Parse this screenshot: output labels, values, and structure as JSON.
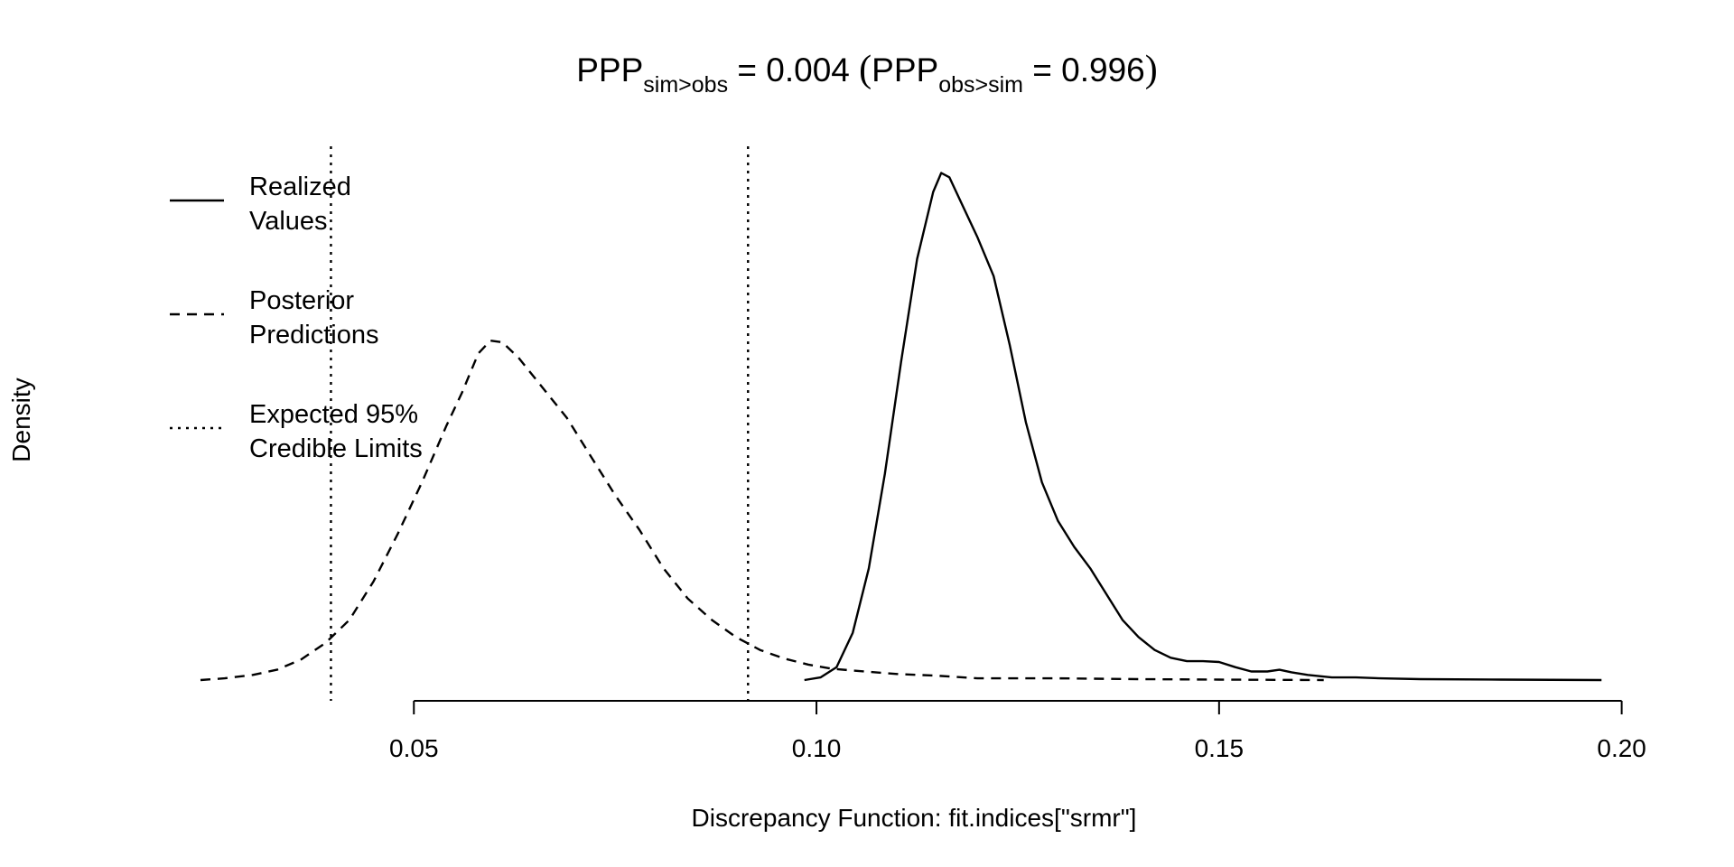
{
  "chart_data": {
    "type": "line",
    "title": {
      "lhs_main": "PPP",
      "lhs_sub": "sim>obs",
      "lhs_value": " = 0.004 ",
      "open_paren": "(",
      "rhs_main": "PPP",
      "rhs_sub": "obs>sim",
      "rhs_value": " = 0.996",
      "close_paren": ")"
    },
    "xlabel": "Discrepancy Function: fit.indices[\"srmr\"]",
    "ylabel": "Density",
    "xlim": [
      0.0235,
      0.2015
    ],
    "ylim": [
      0,
      60
    ],
    "x_axis_ticks": [
      {
        "value": 0.05,
        "label": "0.05"
      },
      {
        "value": 0.1,
        "label": "0.10"
      },
      {
        "value": 0.15,
        "label": "0.15"
      },
      {
        "value": 0.2,
        "label": "0.20"
      }
    ],
    "y_axis_visible": false,
    "grid": false,
    "legend": {
      "position": "top-left",
      "entries": [
        {
          "line1": "Realized",
          "line2": "Values",
          "style": "solid"
        },
        {
          "line1": "Posterior",
          "line2": "Predictions",
          "style": "dashed"
        },
        {
          "line1": "Expected 95%",
          "line2": "Credible Limits",
          "style": "dotted"
        }
      ]
    },
    "series": [
      {
        "name": "Realized Values",
        "style": "solid",
        "points": [
          [
            0.0985,
            0.0
          ],
          [
            0.1005,
            0.3
          ],
          [
            0.1025,
            1.5
          ],
          [
            0.1045,
            5.5
          ],
          [
            0.1065,
            13.0
          ],
          [
            0.1085,
            24.0
          ],
          [
            0.1105,
            37.0
          ],
          [
            0.1125,
            49.0
          ],
          [
            0.1145,
            56.8
          ],
          [
            0.1155,
            59.0
          ],
          [
            0.1165,
            58.5
          ],
          [
            0.118,
            55.5
          ],
          [
            0.12,
            51.5
          ],
          [
            0.122,
            47.0
          ],
          [
            0.124,
            39.0
          ],
          [
            0.126,
            30.0
          ],
          [
            0.128,
            23.0
          ],
          [
            0.13,
            18.5
          ],
          [
            0.132,
            15.5
          ],
          [
            0.134,
            13.0
          ],
          [
            0.136,
            10.0
          ],
          [
            0.138,
            7.0
          ],
          [
            0.14,
            5.0
          ],
          [
            0.142,
            3.5
          ],
          [
            0.144,
            2.6
          ],
          [
            0.146,
            2.2
          ],
          [
            0.148,
            2.2
          ],
          [
            0.15,
            2.1
          ],
          [
            0.152,
            1.5
          ],
          [
            0.154,
            1.0
          ],
          [
            0.156,
            1.0
          ],
          [
            0.1575,
            1.2
          ],
          [
            0.159,
            0.9
          ],
          [
            0.161,
            0.6
          ],
          [
            0.164,
            0.3
          ],
          [
            0.167,
            0.3
          ],
          [
            0.17,
            0.2
          ],
          [
            0.175,
            0.1
          ],
          [
            0.185,
            0.05
          ],
          [
            0.1975,
            0.0
          ]
        ]
      },
      {
        "name": "Posterior Predictions",
        "style": "dashed",
        "points": [
          [
            0.0235,
            0.0
          ],
          [
            0.0265,
            0.2
          ],
          [
            0.03,
            0.6
          ],
          [
            0.033,
            1.2
          ],
          [
            0.036,
            2.4
          ],
          [
            0.039,
            4.3
          ],
          [
            0.042,
            7.0
          ],
          [
            0.045,
            11.5
          ],
          [
            0.048,
            17.0
          ],
          [
            0.051,
            23.0
          ],
          [
            0.054,
            29.5
          ],
          [
            0.056,
            33.5
          ],
          [
            0.058,
            38.0
          ],
          [
            0.0595,
            39.5
          ],
          [
            0.061,
            39.3
          ],
          [
            0.063,
            37.5
          ],
          [
            0.066,
            34.0
          ],
          [
            0.069,
            30.5
          ],
          [
            0.072,
            26.0
          ],
          [
            0.075,
            21.5
          ],
          [
            0.078,
            17.5
          ],
          [
            0.081,
            13.0
          ],
          [
            0.084,
            9.5
          ],
          [
            0.087,
            7.0
          ],
          [
            0.09,
            5.0
          ],
          [
            0.093,
            3.5
          ],
          [
            0.096,
            2.5
          ],
          [
            0.099,
            1.8
          ],
          [
            0.102,
            1.3
          ],
          [
            0.106,
            1.0
          ],
          [
            0.11,
            0.7
          ],
          [
            0.115,
            0.5
          ],
          [
            0.12,
            0.2
          ],
          [
            0.13,
            0.2
          ],
          [
            0.14,
            0.1
          ],
          [
            0.15,
            0.05
          ],
          [
            0.163,
            0.0
          ]
        ]
      }
    ],
    "reference_lines": [
      {
        "name": "Expected 95% Credible Limits (lower)",
        "style": "dotted",
        "x": 0.0397
      },
      {
        "name": "Expected 95% Credible Limits (upper)",
        "style": "dotted",
        "x": 0.0915
      }
    ]
  }
}
